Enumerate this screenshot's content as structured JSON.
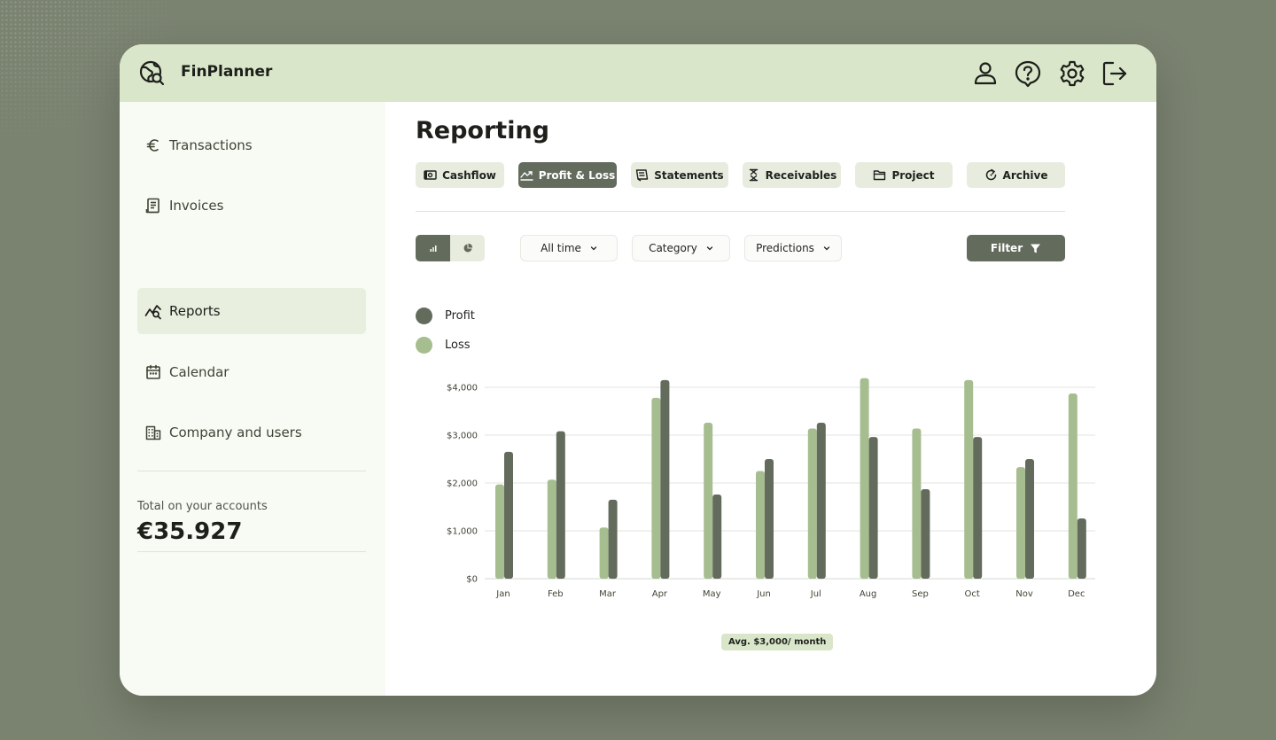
{
  "app": {
    "title": "FinPlanner"
  },
  "header_icons": [
    "user-icon",
    "help-icon",
    "settings-icon",
    "logout-icon"
  ],
  "sidebar": {
    "items": [
      {
        "label": "Transactions",
        "icon": "euro-icon"
      },
      {
        "label": "Invoices",
        "icon": "invoice-icon"
      },
      {
        "label": "Reports",
        "icon": "reports-icon",
        "active": true
      },
      {
        "label": "Calendar",
        "icon": "calendar-icon"
      },
      {
        "label": "Company and users",
        "icon": "building-icon"
      }
    ],
    "total_label": "Total on your accounts",
    "total_value": "€35.927"
  },
  "main": {
    "title": "Reporting",
    "tabs": [
      {
        "label": "Cashflow",
        "icon": "cash-icon"
      },
      {
        "label": "Profit & Loss",
        "icon": "trend-icon",
        "active": true
      },
      {
        "label": "Statements",
        "icon": "statements-icon"
      },
      {
        "label": "Receivables",
        "icon": "hourglass-icon"
      },
      {
        "label": "Project",
        "icon": "folder-icon"
      },
      {
        "label": "Archive",
        "icon": "archive-icon"
      }
    ],
    "view_toggle": {
      "selected": "bar",
      "options": [
        "bar-chart-icon",
        "pie-chart-icon"
      ]
    },
    "filters": {
      "period": "All time",
      "category": "Category",
      "predictions": "Predictions",
      "filter_button": "Filter"
    },
    "avg_badge": "Avg. $3,000/ month"
  },
  "colors": {
    "profit": "#636b5c",
    "loss": "#a6bd90",
    "header_bg": "#dae6ca",
    "accent_dark": "#636b5c"
  },
  "chart_data": {
    "type": "bar",
    "categories": [
      "Jan",
      "Feb",
      "Mar",
      "Apr",
      "May",
      "Jun",
      "Jul",
      "Aug",
      "Sep",
      "Oct",
      "Nov",
      "Dec"
    ],
    "series": [
      {
        "name": "Profit",
        "values": [
          2650,
          3080,
          1650,
          4150,
          1760,
          2500,
          3260,
          2960,
          1870,
          2960,
          2500,
          1260
        ]
      },
      {
        "name": "Loss",
        "values": [
          1970,
          2070,
          1070,
          3780,
          3260,
          2250,
          3140,
          4190,
          3140,
          4150,
          2330,
          3870
        ]
      }
    ],
    "yticks": [
      "$4,000",
      "$3,000",
      "$2,000",
      "$1,000",
      "$0"
    ],
    "ylim": [
      0,
      4000
    ],
    "legend": "top-left",
    "grid": true
  }
}
